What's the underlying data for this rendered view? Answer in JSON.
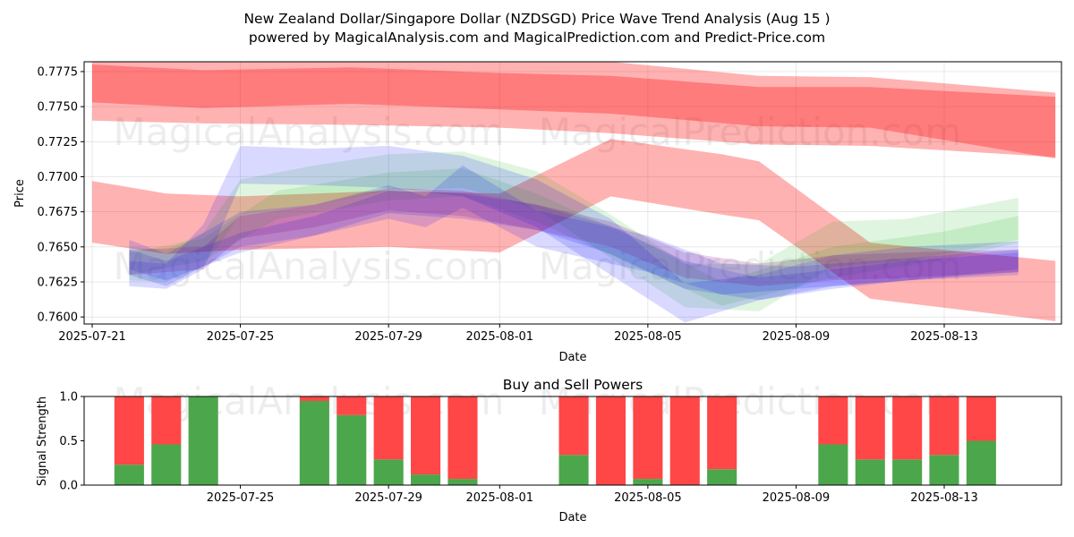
{
  "chart_data": [
    {
      "type": "area",
      "title": "New Zealand Dollar/Singapore Dollar (NZDSGD) Price Wave Trend Analysis (Aug 15 )",
      "subtitle": "powered by MagicalAnalysis.com and MagicalPrediction.com and Predict-Price.com",
      "xlabel": "Date",
      "ylabel": "Price",
      "xlim": [
        "2025-07-21",
        "2025-08-17"
      ],
      "ylim": [
        0.7595,
        0.7782
      ],
      "x_ticks": [
        "2025-07-21",
        "2025-07-25",
        "2025-07-29",
        "2025-08-01",
        "2025-08-05",
        "2025-08-09",
        "2025-08-13"
      ],
      "y_ticks": [
        "0.7600",
        "0.7625",
        "0.7650",
        "0.7675",
        "0.7700",
        "0.7725",
        "0.7750",
        "0.7775"
      ],
      "watermarks": [
        "MagicalAnalysis.com",
        "MagicalPrediction.com",
        "MagicalAnalysis.com",
        "MagicalPrediction.com"
      ],
      "bands": [
        {
          "color": "#ff0000",
          "opacity": 0.3,
          "x": [
            "2025-07-21",
            "2025-07-24",
            "2025-07-28",
            "2025-08-01",
            "2025-08-04",
            "2025-08-08",
            "2025-08-11",
            "2025-08-16"
          ],
          "upper": [
            0.779,
            0.7785,
            0.7786,
            0.7784,
            0.7782,
            0.7772,
            0.7771,
            0.776
          ],
          "lower": [
            0.774,
            0.7738,
            0.7737,
            0.7735,
            0.7731,
            0.7723,
            0.7722,
            0.7714
          ]
        },
        {
          "color": "#ff0000",
          "opacity": 0.3,
          "x": [
            "2025-07-21",
            "2025-07-24",
            "2025-07-28",
            "2025-08-01",
            "2025-08-04",
            "2025-08-08",
            "2025-08-11",
            "2025-08-16"
          ],
          "upper": [
            0.778,
            0.7776,
            0.7778,
            0.7774,
            0.7772,
            0.7764,
            0.7764,
            0.7757
          ],
          "lower": [
            0.7753,
            0.7749,
            0.7752,
            0.7748,
            0.7745,
            0.7736,
            0.7735,
            0.7713
          ]
        },
        {
          "color": "#ff0000",
          "opacity": 0.3,
          "x": [
            "2025-07-21",
            "2025-07-23",
            "2025-07-25",
            "2025-07-29",
            "2025-08-01",
            "2025-08-04",
            "2025-08-07",
            "2025-08-08",
            "2025-08-11",
            "2025-08-16"
          ],
          "upper": [
            0.7697,
            0.7688,
            0.7686,
            0.769,
            0.7688,
            0.7727,
            0.7716,
            0.7711,
            0.7653,
            0.764
          ],
          "lower": [
            0.7653,
            0.7645,
            0.7648,
            0.765,
            0.7646,
            0.7686,
            0.7673,
            0.7669,
            0.7613,
            0.7597
          ]
        },
        {
          "color": "#00aa00",
          "opacity": 0.12,
          "x": [
            "2025-07-22",
            "2025-07-23",
            "2025-07-24",
            "2025-07-25",
            "2025-07-27",
            "2025-07-29",
            "2025-07-31",
            "2025-08-02",
            "2025-08-04",
            "2025-08-06",
            "2025-08-08",
            "2025-08-10",
            "2025-08-12",
            "2025-08-15"
          ],
          "upper": [
            0.765,
            0.7648,
            0.766,
            0.7698,
            0.7708,
            0.7716,
            0.7718,
            0.7704,
            0.7673,
            0.7638,
            0.7638,
            0.7668,
            0.767,
            0.7685
          ],
          "lower": [
            0.7626,
            0.7625,
            0.7636,
            0.7673,
            0.768,
            0.769,
            0.7692,
            0.7677,
            0.7642,
            0.7607,
            0.7604,
            0.7636,
            0.764,
            0.7655
          ]
        },
        {
          "color": "#00aa00",
          "opacity": 0.12,
          "x": [
            "2025-07-22",
            "2025-07-24",
            "2025-07-26",
            "2025-07-29",
            "2025-07-31",
            "2025-08-02",
            "2025-08-05",
            "2025-08-07",
            "2025-08-10",
            "2025-08-13",
            "2025-08-15"
          ],
          "upper": [
            0.7646,
            0.7656,
            0.769,
            0.7703,
            0.7706,
            0.7688,
            0.7652,
            0.7625,
            0.765,
            0.7661,
            0.7672
          ],
          "lower": [
            0.763,
            0.764,
            0.767,
            0.7683,
            0.7686,
            0.7668,
            0.7632,
            0.7608,
            0.7628,
            0.7641,
            0.7653
          ]
        },
        {
          "color": "#0000ff",
          "opacity": 0.15,
          "x": [
            "2025-07-22",
            "2025-07-23",
            "2025-07-24",
            "2025-07-25",
            "2025-07-27",
            "2025-07-29",
            "2025-07-31",
            "2025-08-02",
            "2025-08-04",
            "2025-08-06",
            "2025-08-08",
            "2025-08-10",
            "2025-08-12",
            "2025-08-15"
          ],
          "upper": [
            0.764,
            0.7638,
            0.7666,
            0.7722,
            0.772,
            0.7722,
            0.7715,
            0.7698,
            0.767,
            0.7624,
            0.763,
            0.7644,
            0.765,
            0.7654
          ],
          "lower": [
            0.7622,
            0.762,
            0.7634,
            0.7695,
            0.7694,
            0.7692,
            0.7686,
            0.7664,
            0.763,
            0.7596,
            0.7612,
            0.7622,
            0.7626,
            0.763
          ]
        },
        {
          "color": "#0000ff",
          "opacity": 0.15,
          "x": [
            "2025-07-22",
            "2025-07-23",
            "2025-07-25",
            "2025-07-27",
            "2025-07-29",
            "2025-07-30",
            "2025-07-31",
            "2025-08-02",
            "2025-08-05",
            "2025-08-07",
            "2025-08-09",
            "2025-08-12",
            "2025-08-15"
          ],
          "upper": [
            0.7655,
            0.7645,
            0.7675,
            0.768,
            0.7694,
            0.7686,
            0.7708,
            0.7676,
            0.7658,
            0.7638,
            0.7636,
            0.7642,
            0.7648
          ],
          "lower": [
            0.763,
            0.7622,
            0.765,
            0.7658,
            0.767,
            0.7664,
            0.7678,
            0.765,
            0.7632,
            0.7616,
            0.762,
            0.7626,
            0.7634
          ]
        },
        {
          "color": "#0000ff",
          "opacity": 0.15,
          "x": [
            "2025-07-22",
            "2025-07-23",
            "2025-07-25",
            "2025-07-27",
            "2025-07-29",
            "2025-07-31",
            "2025-08-02",
            "2025-08-04",
            "2025-08-06",
            "2025-08-08",
            "2025-08-10",
            "2025-08-12",
            "2025-08-15"
          ],
          "upper": [
            0.7648,
            0.764,
            0.766,
            0.7672,
            0.769,
            0.7688,
            0.768,
            0.7665,
            0.764,
            0.7628,
            0.7634,
            0.764,
            0.7646
          ],
          "lower": [
            0.7634,
            0.7626,
            0.7646,
            0.7658,
            0.7674,
            0.767,
            0.7662,
            0.7645,
            0.762,
            0.7612,
            0.762,
            0.7626,
            0.7632
          ]
        },
        {
          "color": "#800080",
          "opacity": 0.18,
          "x": [
            "2025-07-22",
            "2025-07-24",
            "2025-07-25",
            "2025-07-27",
            "2025-07-29",
            "2025-07-31",
            "2025-08-02",
            "2025-08-04",
            "2025-08-06",
            "2025-08-08",
            "2025-08-10",
            "2025-08-12",
            "2025-08-15"
          ],
          "upper": [
            0.7648,
            0.765,
            0.7672,
            0.768,
            0.7692,
            0.769,
            0.768,
            0.7668,
            0.7646,
            0.7638,
            0.7644,
            0.7646,
            0.7648
          ],
          "lower": [
            0.763,
            0.7634,
            0.7656,
            0.7664,
            0.7676,
            0.7672,
            0.7662,
            0.765,
            0.7628,
            0.7622,
            0.7626,
            0.7628,
            0.7632
          ]
        }
      ]
    },
    {
      "type": "bar",
      "title": "Buy and Sell Powers",
      "xlabel": "Date",
      "ylabel": "Signal Strength",
      "ylim": [
        0,
        1
      ],
      "y_ticks": [
        "0.0",
        "0.5",
        "1.0"
      ],
      "x_ticks": [
        "2025-07-25",
        "2025-07-29",
        "2025-08-01",
        "2025-08-05",
        "2025-08-09",
        "2025-08-13"
      ],
      "xlim": [
        "2025-07-21",
        "2025-08-17"
      ],
      "buy_color": "#4ca64c",
      "sell_color": "#ff4747",
      "categories": [
        "2025-07-22",
        "2025-07-23",
        "2025-07-24",
        "2025-07-27",
        "2025-07-28",
        "2025-07-29",
        "2025-07-30",
        "2025-07-31",
        "2025-08-03",
        "2025-08-04",
        "2025-08-05",
        "2025-08-06",
        "2025-08-07",
        "2025-08-10",
        "2025-08-11",
        "2025-08-12",
        "2025-08-13",
        "2025-08-14"
      ],
      "series": [
        {
          "name": "Buy",
          "values": [
            0.23,
            0.46,
            1.0,
            0.95,
            0.79,
            0.29,
            0.12,
            0.07,
            0.34,
            0.0,
            0.07,
            0.0,
            0.18,
            0.46,
            0.29,
            0.29,
            0.34,
            0.5
          ]
        },
        {
          "name": "Sell",
          "values": [
            0.77,
            0.54,
            0.0,
            0.05,
            0.21,
            0.71,
            0.88,
            0.93,
            0.66,
            1.0,
            0.93,
            1.0,
            0.82,
            0.54,
            0.71,
            0.71,
            0.66,
            0.5
          ]
        }
      ],
      "watermarks": [
        "MagicalAnalysis.com",
        "MagicalPrediction.com"
      ]
    }
  ]
}
